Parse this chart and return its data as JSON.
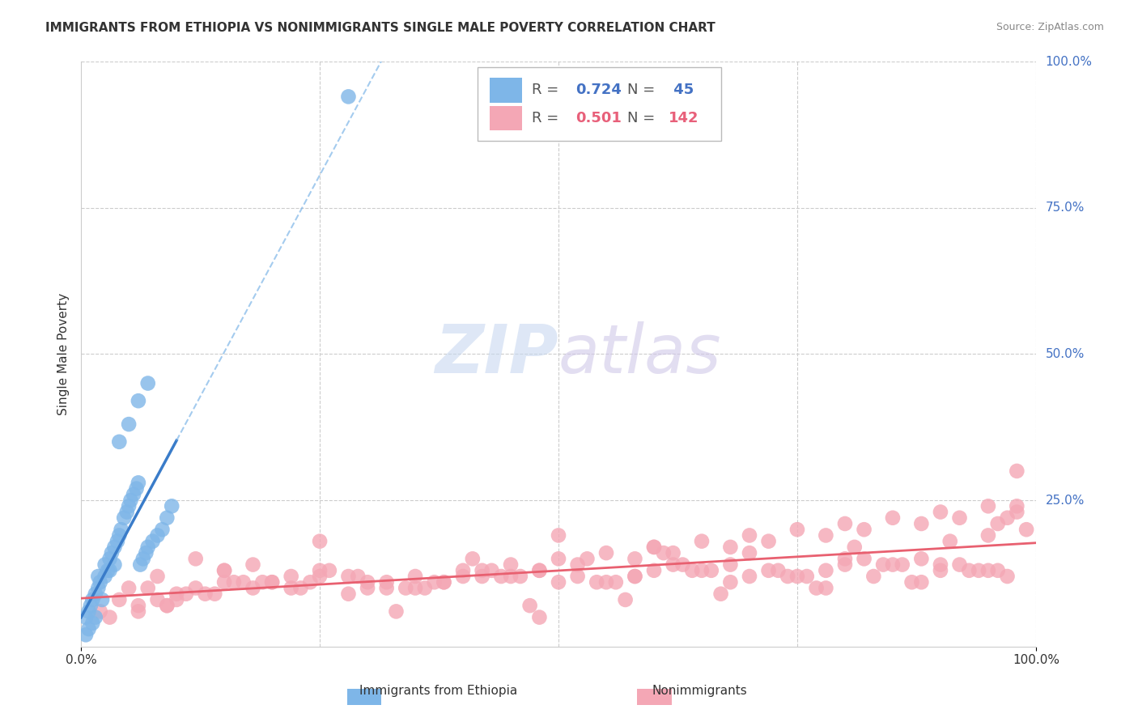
{
  "title": "IMMIGRANTS FROM ETHIOPIA VS NONIMMIGRANTS SINGLE MALE POVERTY CORRELATION CHART",
  "source": "Source: ZipAtlas.com",
  "ylabel": "Single Male Poverty",
  "xlim": [
    0,
    1.0
  ],
  "ylim": [
    0,
    1.0
  ],
  "legend_r1": "0.724",
  "legend_n1": " 45",
  "legend_r2": "0.501",
  "legend_n2": "142",
  "color_blue": "#7EB6E8",
  "color_pink": "#F4A7B5",
  "line_blue": "#3A7CC9",
  "line_pink": "#E86070",
  "color_blue_text": "#4472C4",
  "color_pink_text": "#E8607A",
  "watermark_zip": "ZIP",
  "watermark_atlas": "atlas",
  "blue_scatter_x": [
    0.005,
    0.008,
    0.012,
    0.015,
    0.018,
    0.022,
    0.025,
    0.028,
    0.03,
    0.032,
    0.035,
    0.038,
    0.04,
    0.042,
    0.045,
    0.048,
    0.05,
    0.052,
    0.055,
    0.058,
    0.06,
    0.062,
    0.065,
    0.068,
    0.07,
    0.075,
    0.08,
    0.085,
    0.09,
    0.095,
    0.005,
    0.008,
    0.01,
    0.012,
    0.015,
    0.018,
    0.02,
    0.025,
    0.03,
    0.035,
    0.04,
    0.05,
    0.06,
    0.07,
    0.28
  ],
  "blue_scatter_y": [
    0.02,
    0.03,
    0.04,
    0.05,
    0.12,
    0.08,
    0.14,
    0.13,
    0.15,
    0.16,
    0.17,
    0.18,
    0.19,
    0.2,
    0.22,
    0.23,
    0.24,
    0.25,
    0.26,
    0.27,
    0.28,
    0.14,
    0.15,
    0.16,
    0.17,
    0.18,
    0.19,
    0.2,
    0.22,
    0.24,
    0.05,
    0.06,
    0.07,
    0.08,
    0.09,
    0.1,
    0.11,
    0.12,
    0.13,
    0.14,
    0.35,
    0.38,
    0.42,
    0.45,
    0.94
  ],
  "pink_scatter_x": [
    0.05,
    0.08,
    0.1,
    0.12,
    0.15,
    0.18,
    0.2,
    0.22,
    0.25,
    0.28,
    0.3,
    0.32,
    0.35,
    0.38,
    0.4,
    0.42,
    0.45,
    0.48,
    0.5,
    0.52,
    0.55,
    0.58,
    0.6,
    0.62,
    0.65,
    0.68,
    0.7,
    0.72,
    0.75,
    0.78,
    0.8,
    0.82,
    0.85,
    0.88,
    0.9,
    0.92,
    0.95,
    0.98,
    0.15,
    0.25,
    0.35,
    0.45,
    0.55,
    0.65,
    0.75,
    0.85,
    0.95,
    0.1,
    0.2,
    0.3,
    0.4,
    0.5,
    0.6,
    0.7,
    0.8,
    0.9,
    0.12,
    0.22,
    0.32,
    0.42,
    0.52,
    0.62,
    0.72,
    0.82,
    0.92,
    0.08,
    0.18,
    0.28,
    0.38,
    0.48,
    0.58,
    0.68,
    0.78,
    0.88,
    0.98,
    0.16,
    0.26,
    0.36,
    0.46,
    0.56,
    0.66,
    0.76,
    0.86,
    0.96,
    0.14,
    0.24,
    0.34,
    0.44,
    0.54,
    0.64,
    0.74,
    0.84,
    0.94,
    0.06,
    0.11,
    0.17,
    0.23,
    0.29,
    0.37,
    0.43,
    0.48,
    0.53,
    0.58,
    0.63,
    0.68,
    0.73,
    0.78,
    0.83,
    0.88,
    0.93,
    0.97,
    0.02,
    0.04,
    0.07,
    0.09,
    0.13,
    0.19,
    0.33,
    0.47,
    0.57,
    0.67,
    0.77,
    0.87,
    0.97,
    0.03,
    0.06,
    0.09,
    0.15,
    0.25,
    0.5,
    0.6,
    0.7,
    0.8,
    0.9,
    0.99,
    0.41,
    0.61,
    0.81,
    0.91,
    0.95,
    0.96,
    0.98
  ],
  "pink_scatter_y": [
    0.1,
    0.12,
    0.08,
    0.15,
    0.13,
    0.14,
    0.11,
    0.1,
    0.12,
    0.09,
    0.11,
    0.1,
    0.12,
    0.11,
    0.13,
    0.12,
    0.14,
    0.13,
    0.15,
    0.14,
    0.16,
    0.15,
    0.17,
    0.16,
    0.18,
    0.17,
    0.19,
    0.18,
    0.2,
    0.19,
    0.21,
    0.2,
    0.22,
    0.21,
    0.23,
    0.22,
    0.24,
    0.23,
    0.11,
    0.13,
    0.1,
    0.12,
    0.11,
    0.13,
    0.12,
    0.14,
    0.13,
    0.09,
    0.11,
    0.1,
    0.12,
    0.11,
    0.13,
    0.12,
    0.14,
    0.13,
    0.1,
    0.12,
    0.11,
    0.13,
    0.12,
    0.14,
    0.13,
    0.15,
    0.14,
    0.08,
    0.1,
    0.12,
    0.11,
    0.13,
    0.12,
    0.14,
    0.13,
    0.15,
    0.24,
    0.11,
    0.13,
    0.1,
    0.12,
    0.11,
    0.13,
    0.12,
    0.14,
    0.13,
    0.09,
    0.11,
    0.1,
    0.12,
    0.11,
    0.13,
    0.12,
    0.14,
    0.13,
    0.07,
    0.09,
    0.11,
    0.1,
    0.12,
    0.11,
    0.13,
    0.05,
    0.15,
    0.12,
    0.14,
    0.11,
    0.13,
    0.1,
    0.12,
    0.11,
    0.13,
    0.22,
    0.06,
    0.08,
    0.1,
    0.07,
    0.09,
    0.11,
    0.06,
    0.07,
    0.08,
    0.09,
    0.1,
    0.11,
    0.12,
    0.05,
    0.06,
    0.07,
    0.13,
    0.18,
    0.19,
    0.17,
    0.16,
    0.15,
    0.14,
    0.2,
    0.15,
    0.16,
    0.17,
    0.18,
    0.19,
    0.21,
    0.3
  ]
}
